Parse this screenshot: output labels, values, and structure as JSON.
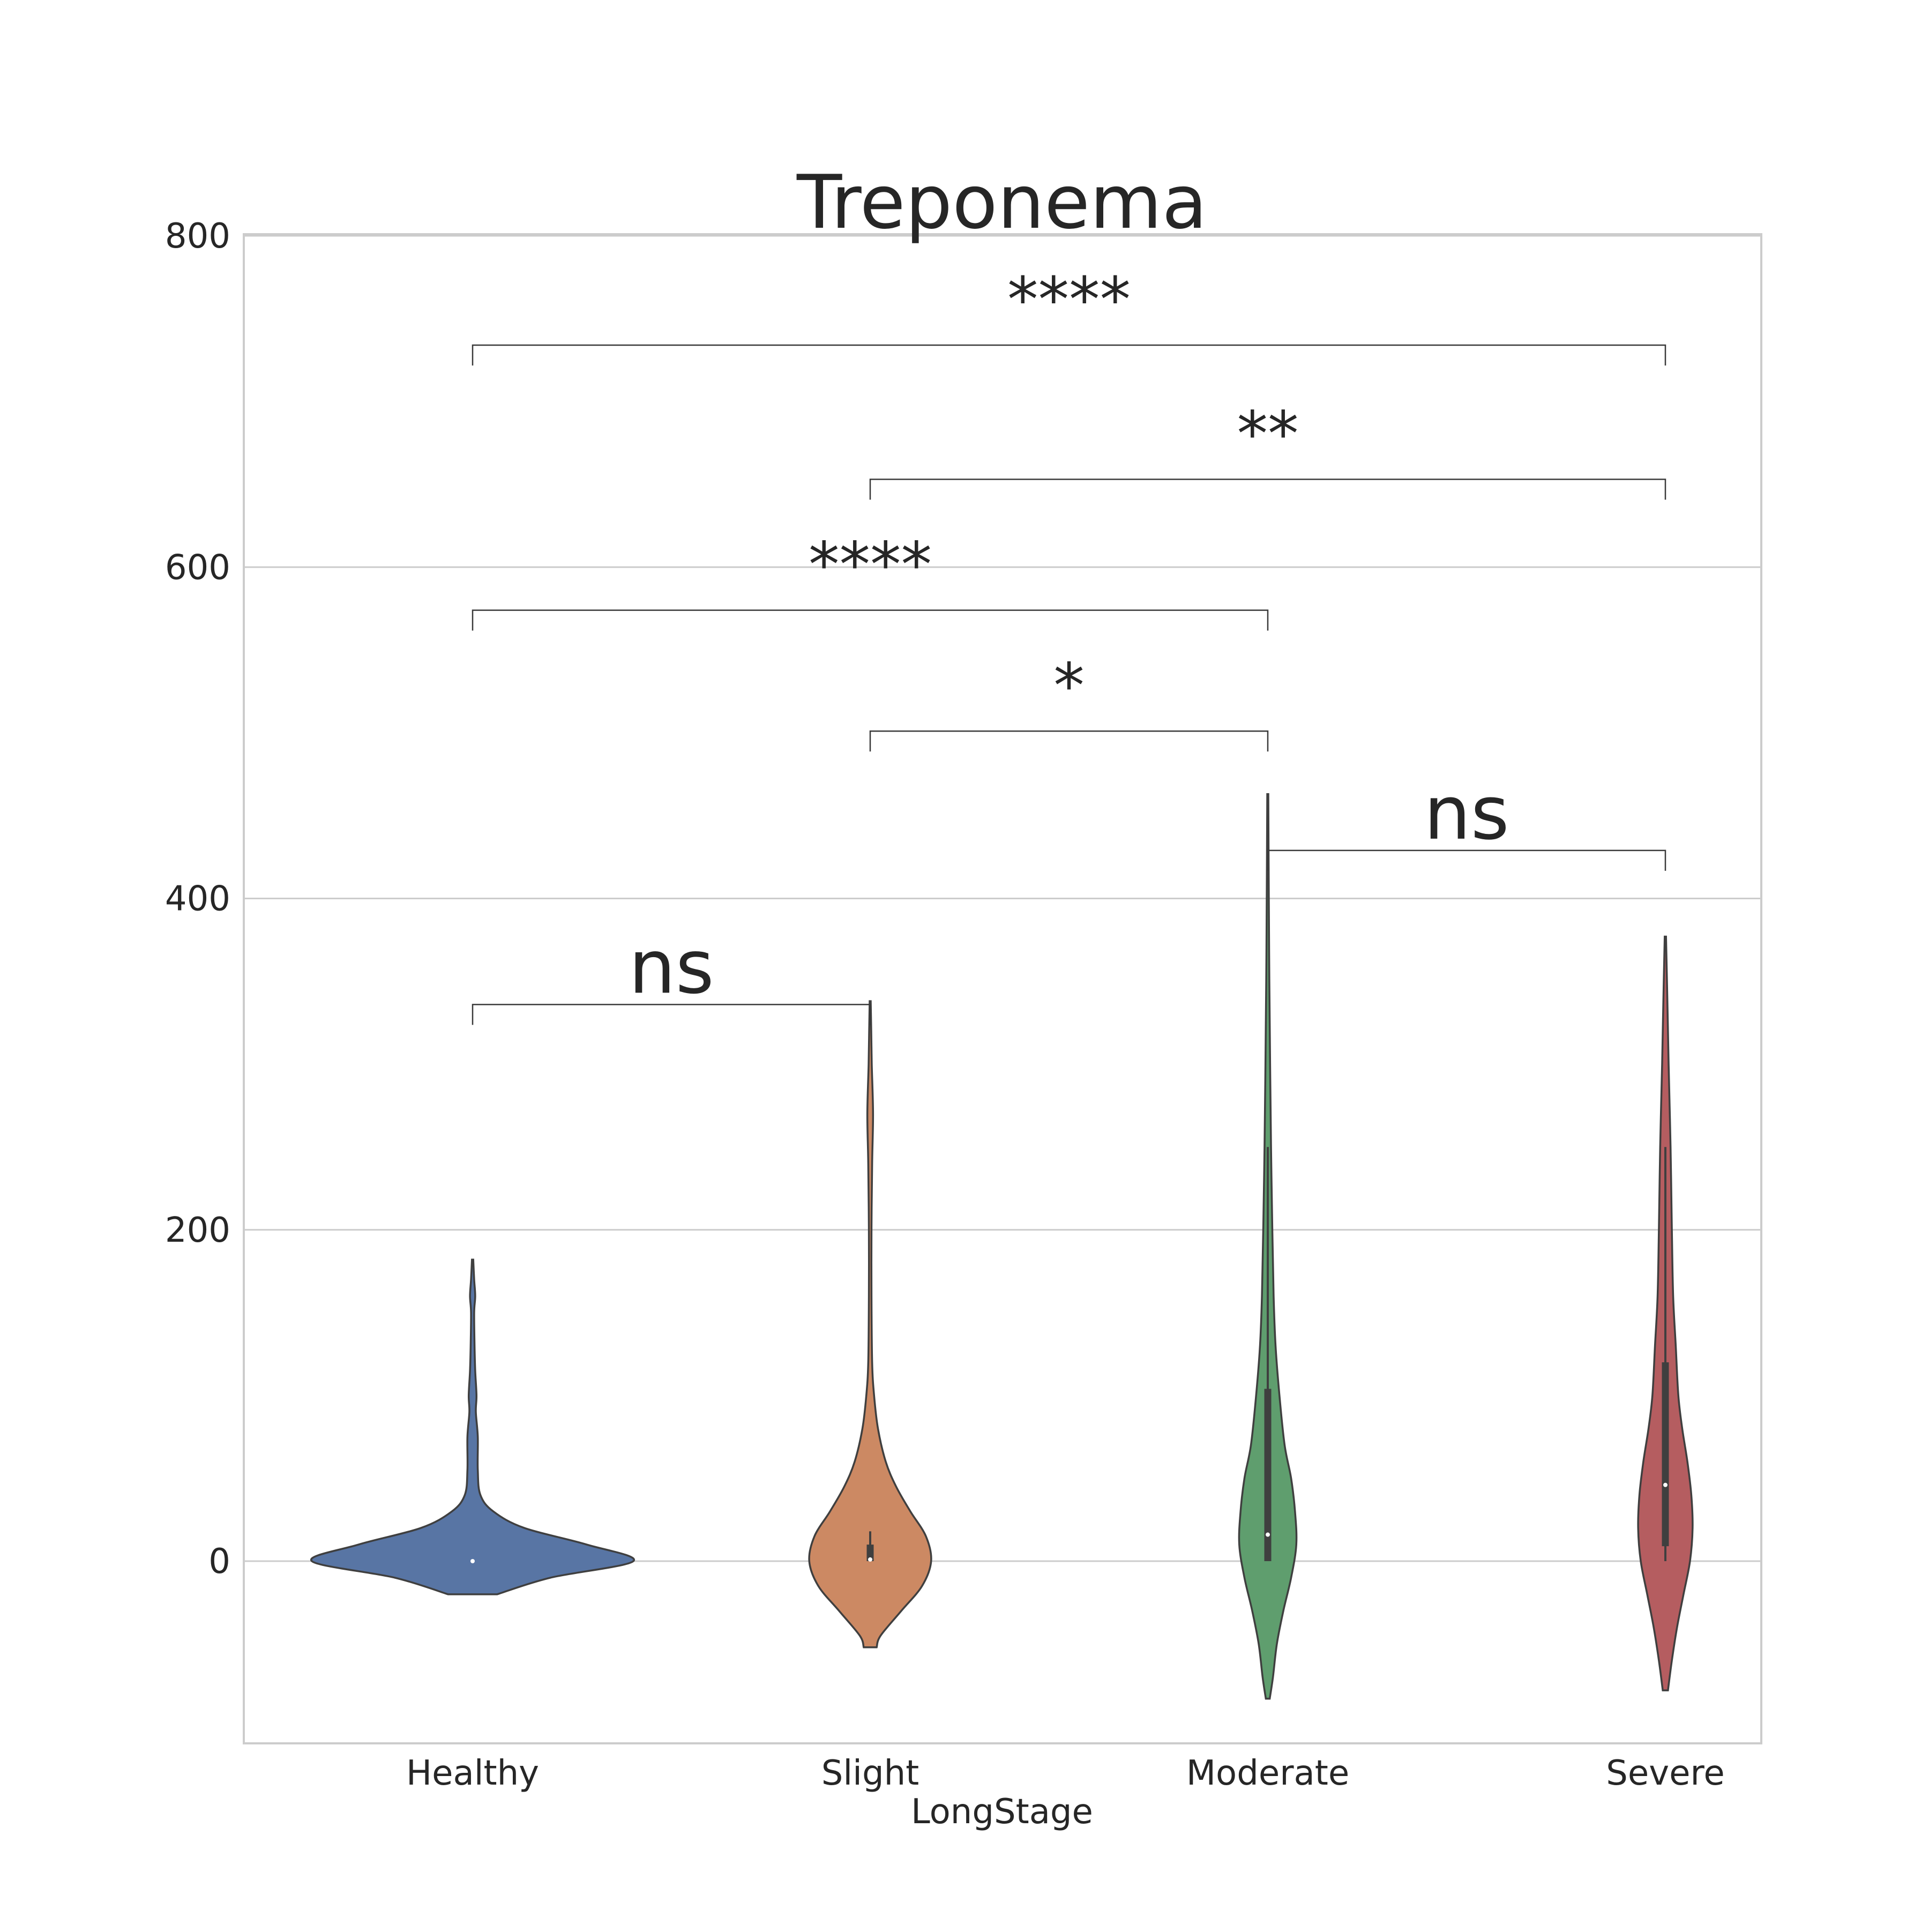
{
  "chart_data": {
    "type": "violin",
    "title": "Treponema",
    "xlabel": "LongStage",
    "ylabel": "",
    "categories": [
      "Healthy",
      "Slight",
      "Moderate",
      "Severe"
    ],
    "ylim": [
      -110,
      800
    ],
    "yticks": [
      0,
      200,
      400,
      600,
      800
    ],
    "y_tick_labels": [
      "0",
      "200",
      "400",
      "600",
      "800"
    ],
    "grid": true,
    "colors": {
      "Healthy": "#5875a4",
      "Slight": "#cc8963",
      "Moderate": "#5f9e6e",
      "Severe": "#b55d60"
    },
    "violins": [
      {
        "name": "Healthy",
        "kde_min": -20,
        "kde_max": 182,
        "whisker_low": 0,
        "whisker_high": 0,
        "q1": 0,
        "median": 0,
        "q3": 0,
        "profile": [
          [
            -20,
            19
          ],
          [
            -10,
            60
          ],
          [
            0,
            124
          ],
          [
            10,
            88
          ],
          [
            20,
            40
          ],
          [
            30,
            16
          ],
          [
            40,
            6
          ],
          [
            55,
            4
          ],
          [
            75,
            4
          ],
          [
            90,
            2.5
          ],
          [
            100,
            3
          ],
          [
            115,
            2
          ],
          [
            130,
            1.5
          ],
          [
            150,
            1.2
          ],
          [
            160,
            2
          ],
          [
            170,
            1.2
          ],
          [
            182,
            0.5
          ]
        ]
      },
      {
        "name": "Slight",
        "kde_min": -52,
        "kde_max": 338,
        "whisker_low": 0,
        "whisker_high": 18,
        "q1": 0,
        "median": 1,
        "q3": 10,
        "profile": [
          [
            -52,
            5
          ],
          [
            -45,
            8
          ],
          [
            -30,
            24
          ],
          [
            -15,
            40
          ],
          [
            0,
            47
          ],
          [
            15,
            43
          ],
          [
            30,
            31
          ],
          [
            45,
            20
          ],
          [
            60,
            12
          ],
          [
            80,
            6
          ],
          [
            100,
            3
          ],
          [
            120,
            1.5
          ],
          [
            160,
            1
          ],
          [
            200,
            1
          ],
          [
            240,
            1.5
          ],
          [
            270,
            2.2
          ],
          [
            300,
            1.2
          ],
          [
            320,
            0.8
          ],
          [
            338,
            0.4
          ]
        ]
      },
      {
        "name": "Moderate",
        "kde_min": -83,
        "kde_max": 463,
        "whisker_low": 0,
        "whisker_high": 250,
        "q1": 0,
        "median": 16,
        "q3": 104,
        "profile": [
          [
            -83,
            1.5
          ],
          [
            -70,
            4
          ],
          [
            -50,
            7
          ],
          [
            -30,
            12
          ],
          [
            -10,
            18
          ],
          [
            10,
            22
          ],
          [
            30,
            21
          ],
          [
            50,
            18
          ],
          [
            70,
            13
          ],
          [
            100,
            9
          ],
          [
            130,
            6
          ],
          [
            160,
            4.5
          ],
          [
            200,
            3.5
          ],
          [
            250,
            2.5
          ],
          [
            300,
            1.8
          ],
          [
            350,
            1.2
          ],
          [
            400,
            0.8
          ],
          [
            463,
            0.4
          ]
        ]
      },
      {
        "name": "Severe",
        "kde_min": -78,
        "kde_max": 377,
        "whisker_low": 0,
        "whisker_high": 250,
        "q1": 9,
        "median": 46,
        "q3": 120,
        "profile": [
          [
            -78,
            2
          ],
          [
            -60,
            5
          ],
          [
            -40,
            9
          ],
          [
            -20,
            14
          ],
          [
            0,
            19
          ],
          [
            20,
            21
          ],
          [
            40,
            20
          ],
          [
            60,
            17
          ],
          [
            80,
            13
          ],
          [
            100,
            10
          ],
          [
            130,
            8
          ],
          [
            160,
            6
          ],
          [
            200,
            5
          ],
          [
            250,
            4
          ],
          [
            300,
            2.5
          ],
          [
            340,
            1.5
          ],
          [
            377,
            0.5
          ]
        ]
      }
    ],
    "annotations": [
      {
        "from": "Healthy",
        "to": "Slight",
        "y": 336,
        "label": "ns"
      },
      {
        "from": "Moderate",
        "to": "Severe",
        "y": 429,
        "label": "ns"
      },
      {
        "from": "Slight",
        "to": "Moderate",
        "y": 501,
        "label": "*"
      },
      {
        "from": "Healthy",
        "to": "Moderate",
        "y": 574,
        "label": "****"
      },
      {
        "from": "Slight",
        "to": "Severe",
        "y": 653,
        "label": "**"
      },
      {
        "from": "Healthy",
        "to": "Severe",
        "y": 734,
        "label": "****"
      }
    ]
  }
}
